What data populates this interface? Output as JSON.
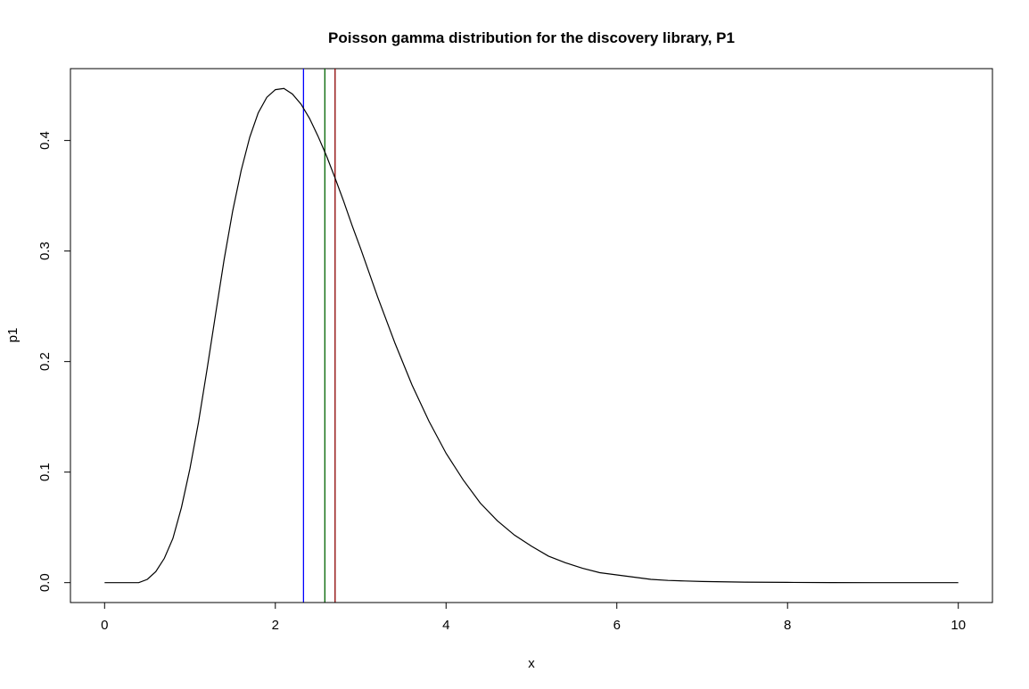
{
  "chart_data": {
    "type": "line",
    "title": "Poisson gamma distribution for the discovery library, P1",
    "xlabel": "x",
    "ylabel": "p1",
    "xlim": [
      -0.4,
      10.4
    ],
    "ylim": [
      -0.018,
      0.465
    ],
    "xticks": [
      0,
      2,
      4,
      6,
      8,
      10
    ],
    "xtick_labels": [
      "0",
      "2",
      "4",
      "6",
      "8",
      "10"
    ],
    "yticks": [
      0.0,
      0.1,
      0.2,
      0.3,
      0.4
    ],
    "ytick_labels": [
      "0.0",
      "0.1",
      "0.2",
      "0.3",
      "0.4"
    ],
    "grid": false,
    "series": [
      {
        "color": "#000000",
        "x": [
          0,
          0.2,
          0.4,
          0.5,
          0.6,
          0.7,
          0.8,
          0.9,
          1.0,
          1.1,
          1.2,
          1.3,
          1.4,
          1.5,
          1.6,
          1.7,
          1.8,
          1.9,
          2.0,
          2.1,
          2.2,
          2.3,
          2.4,
          2.5,
          2.6,
          2.7,
          2.8,
          2.9,
          3.0,
          3.2,
          3.4,
          3.6,
          3.8,
          4.0,
          4.2,
          4.4,
          4.6,
          4.8,
          5.0,
          5.2,
          5.4,
          5.6,
          5.8,
          6.0,
          6.2,
          6.4,
          6.6,
          6.8,
          7.0,
          7.5,
          8.0,
          8.5,
          9.0,
          9.5,
          10.0
        ],
        "y": [
          0.0,
          0.0,
          0.0,
          0.003,
          0.01,
          0.022,
          0.04,
          0.068,
          0.103,
          0.145,
          0.193,
          0.243,
          0.292,
          0.336,
          0.373,
          0.403,
          0.425,
          0.439,
          0.446,
          0.447,
          0.442,
          0.433,
          0.42,
          0.404,
          0.386,
          0.366,
          0.345,
          0.323,
          0.302,
          0.258,
          0.217,
          0.179,
          0.146,
          0.117,
          0.093,
          0.072,
          0.056,
          0.043,
          0.033,
          0.024,
          0.018,
          0.013,
          0.009,
          0.007,
          0.005,
          0.003,
          0.002,
          0.0015,
          0.001,
          0.0005,
          0.0002,
          0.0001,
          0.0,
          0.0,
          0.0
        ]
      }
    ],
    "vlines": [
      {
        "x": 2.33,
        "color": "#0000ff"
      },
      {
        "x": 2.58,
        "color": "#006400"
      },
      {
        "x": 2.7,
        "color": "#8b0000"
      }
    ]
  }
}
